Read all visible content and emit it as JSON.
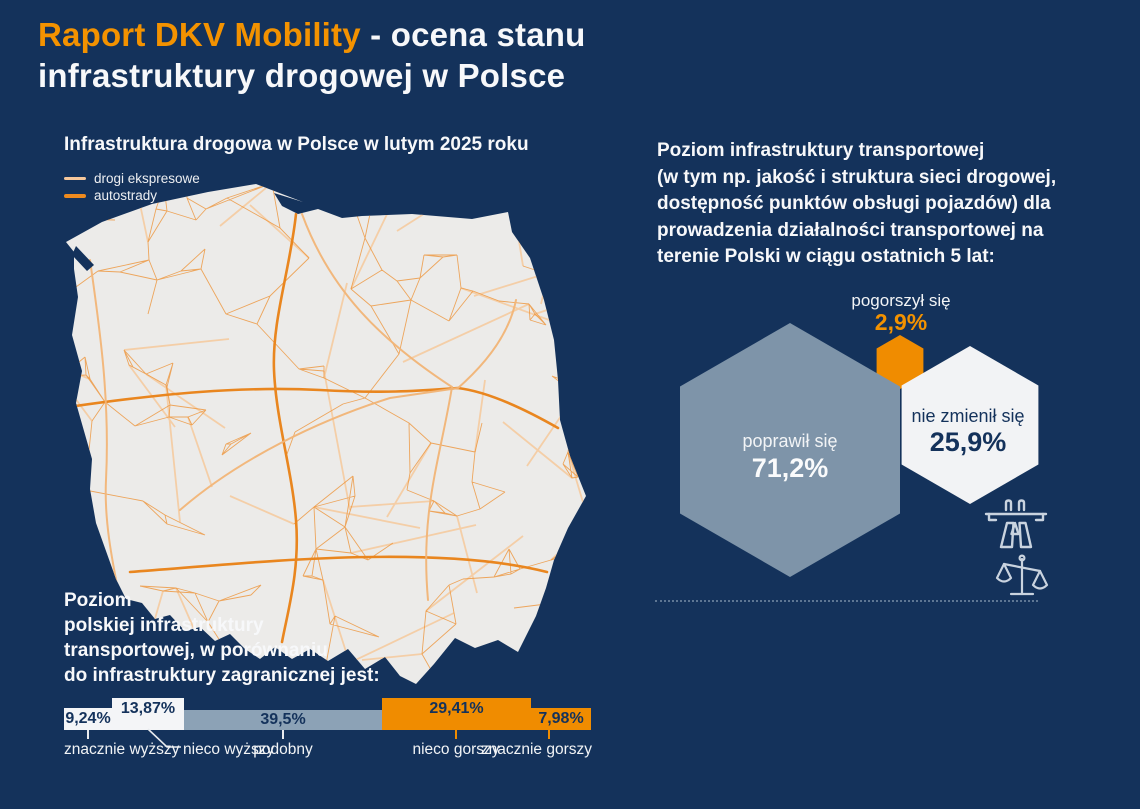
{
  "page": {
    "background": "#14325B",
    "accent_orange": "#F39200",
    "slate_blue": "#7E94A9",
    "off_white": "#F2F3F5",
    "navy_text": "#14325B"
  },
  "header": {
    "title_accent": "Raport DKV Mobility",
    "title_rest": " - ocena stanu",
    "title_line2": "infrastruktury drogowej w Polsce"
  },
  "map_section": {
    "title": "Infrastruktura drogowa w Polsce w lutym 2025 roku",
    "legend": [
      {
        "label": "drogi ekspresowe",
        "color": "#F6C79B"
      },
      {
        "label": "autostrady",
        "color": "#EE8A1E"
      }
    ]
  },
  "opinion_section": {
    "intro": "Poziom infrastruktury transportowej\n(w tym np. jakość i struktura sieci drogowej,\ndostępność punktów obsługi pojazdów) dla\nprowadzenia działalności transportowej na\nterenie Polski w ciągu ostatnich 5 lat:"
  },
  "comparison_section": {
    "heading": "Poziom\npolskiej infrastruktury\ntransportowej, w porównaniu\ndo infrastruktury zagranicznej jest:"
  },
  "chart_data": [
    {
      "type": "pie",
      "style": "hexagon-bubbles",
      "title": "Poziom infrastruktury transportowej dla prowadzenia działalności transportowej na terenie Polski w ciągu ostatnich 5 lat",
      "categories": [
        "poprawił się",
        "pogorszył się",
        "nie zmienił się"
      ],
      "values": [
        71.2,
        2.9,
        25.9
      ],
      "value_labels": [
        "71,2%",
        "2,9%",
        "25,9%"
      ],
      "colors": [
        "#7E94A9",
        "#F08C00",
        "#F2F3F5"
      ],
      "legend_position": "inside"
    },
    {
      "type": "bar",
      "orientation": "horizontal-stacked",
      "title": "Poziom polskiej infrastruktury transportowej, w porównaniu do infrastruktury zagranicznej",
      "categories": [
        "znacznie wyższy",
        "nieco wyższy",
        "podobny",
        "nieco gorszy",
        "znacznie gorszy"
      ],
      "values": [
        9.24,
        13.87,
        39.5,
        29.41,
        7.98
      ],
      "value_labels": [
        "9,24%",
        "13,87%",
        "39,5%",
        "29,41%",
        "7,98%"
      ],
      "colors": [
        "#F4F5F7",
        "#F4F5F7",
        "#8CA2B6",
        "#F08C00",
        "#F08C00"
      ],
      "xlim": [
        0,
        100
      ],
      "grid": false
    }
  ]
}
